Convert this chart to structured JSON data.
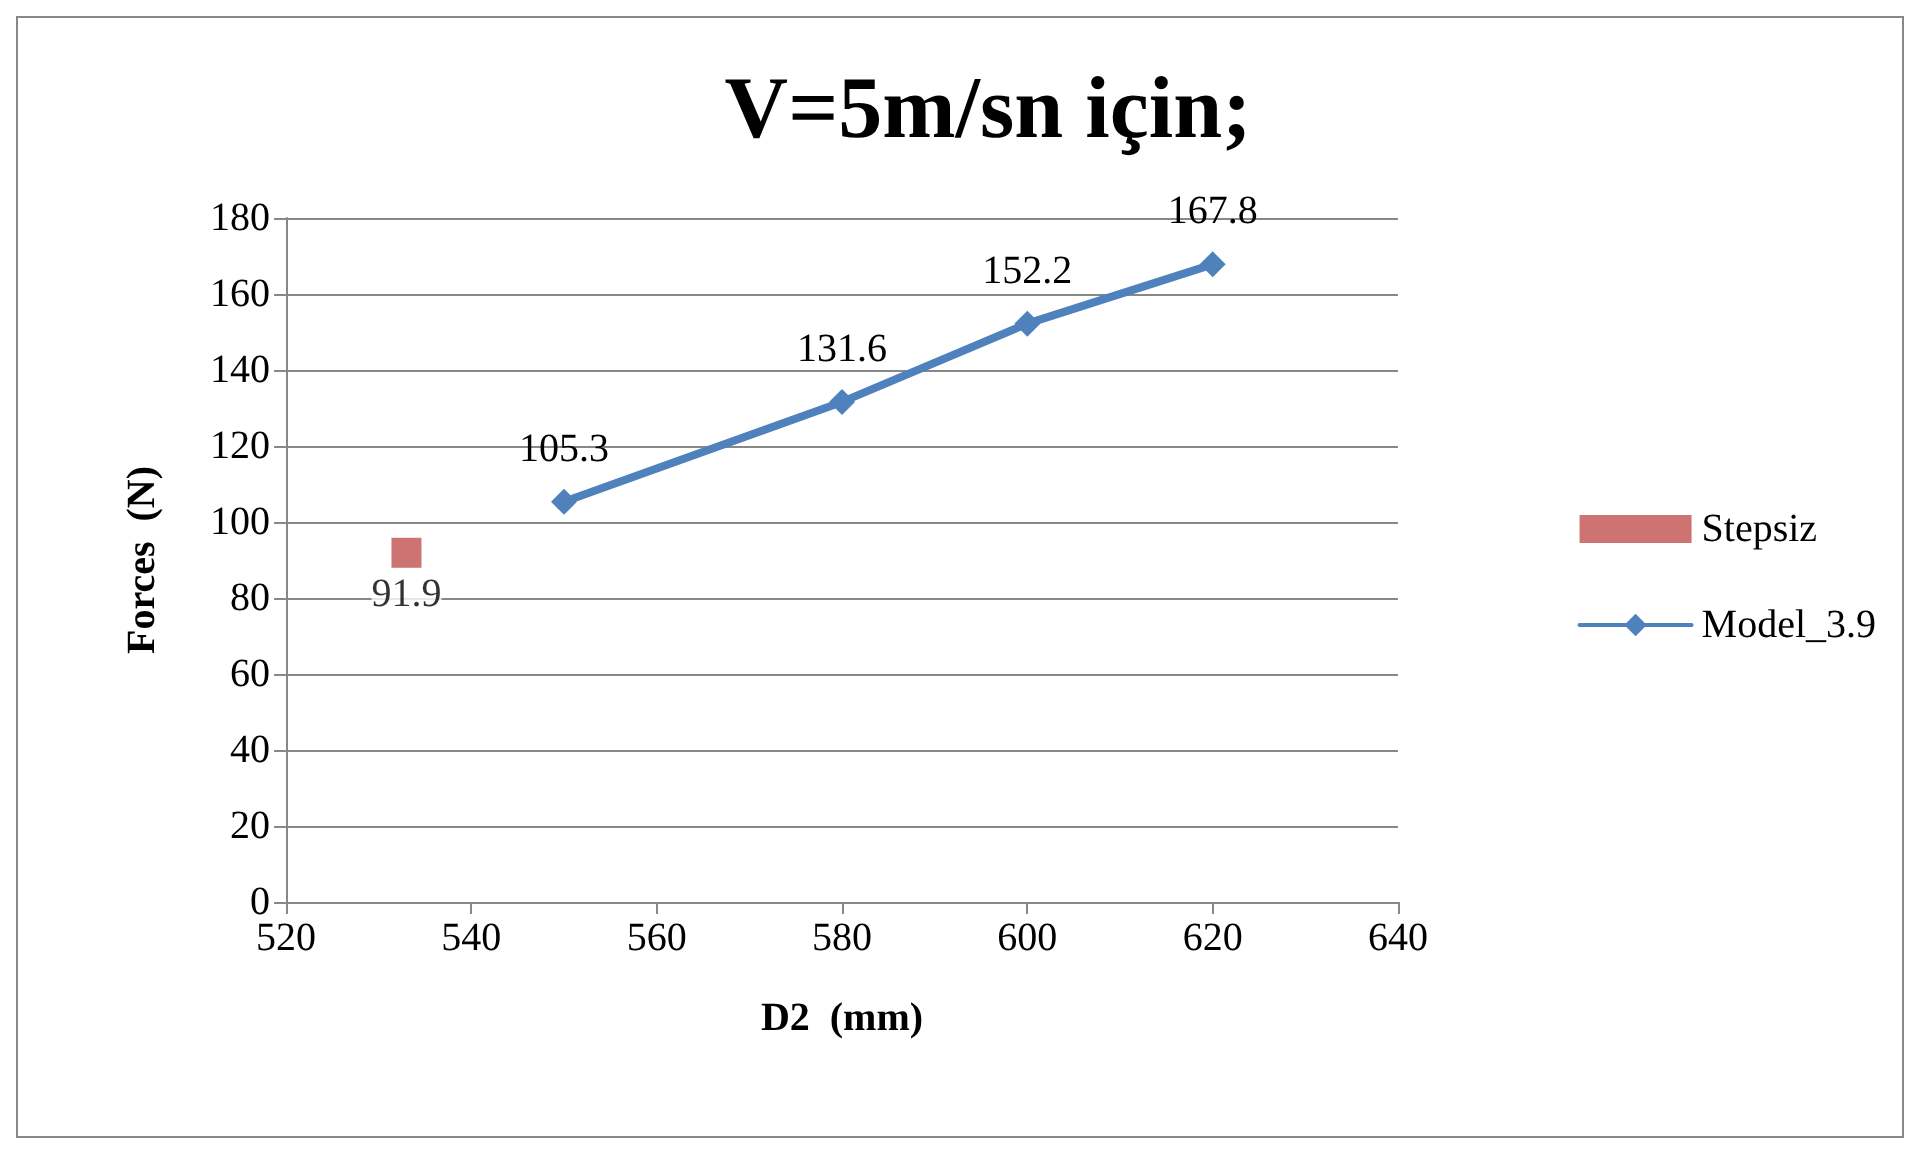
{
  "chart_data": {
    "type": "line",
    "title": "V=5m/sn için;",
    "xlabel": "D2  (mm)",
    "ylabel": "Forces  (N)",
    "series": [
      {
        "name": "Stepsiz",
        "type": "scatter",
        "color": "#c0504d",
        "marker": "square",
        "x": [
          533
        ],
        "values": [
          91.9
        ]
      },
      {
        "name": "Model_3.9",
        "color": "#4f81bd",
        "marker": "diamond",
        "x": [
          550,
          580,
          600,
          620
        ],
        "values": [
          105.3,
          131.6,
          152.2,
          167.8
        ]
      }
    ],
    "xlim": [
      520,
      640
    ],
    "xticks": [
      520,
      540,
      560,
      580,
      600,
      620,
      640
    ],
    "ylim": [
      0,
      180
    ],
    "yticks": [
      0,
      20,
      40,
      60,
      80,
      100,
      120,
      140,
      160,
      180
    ],
    "grid": "y",
    "legend": "right",
    "data_labels": true,
    "line_style": "solid"
  }
}
